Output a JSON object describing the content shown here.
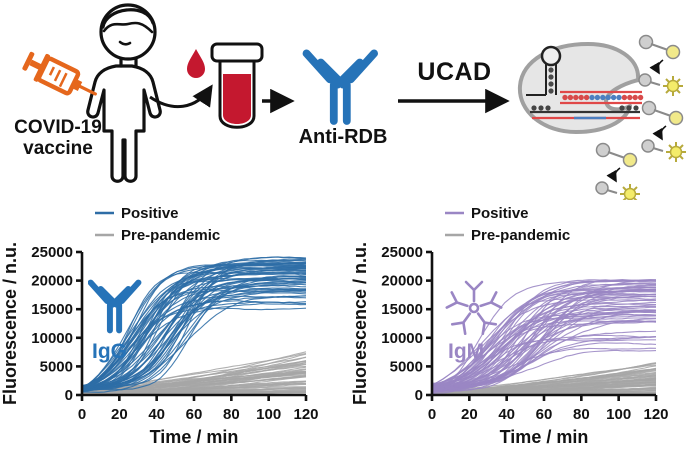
{
  "colors": {
    "positive_igg": "#2e6da6",
    "positive_igm": "#9a86c4",
    "pre_pandemic": "#a6a6a6",
    "antibody_blue": "#2673b8",
    "syringe_orange": "#e5671d",
    "blood_red": "#c4182f",
    "detector_gray": "#e6e6e6",
    "reporter_yellow": "#f1e98a",
    "text": "#111111"
  },
  "schematic": {
    "vaccine_line1": "COVID-19",
    "vaccine_line2": "vaccine",
    "antibody_label": "Anti-RDB",
    "process_label": "UCAD",
    "icons": [
      "person-icon",
      "syringe-icon",
      "blood-drop-icon",
      "blood-tube-icon",
      "transfer-arrow-icon",
      "right-arrow-icon",
      "antibody-icon",
      "ucad-arrow-icon",
      "cas-detector-icon",
      "reporter-molecule-icon"
    ]
  },
  "chart_data": [
    {
      "type": "line",
      "panel_label": "IgG",
      "xlabel": "Time / min",
      "ylabel": "Fluorescence / n.u.",
      "xlim": [
        0,
        120
      ],
      "ylim": [
        0,
        25000
      ],
      "xticks": [
        0,
        20,
        40,
        60,
        80,
        100,
        120
      ],
      "yticks": [
        0,
        5000,
        10000,
        15000,
        20000,
        25000
      ],
      "grid": false,
      "legend_position": "top-left",
      "series": [
        {
          "name": "Positive",
          "color": "#2e6da6",
          "shape": "sigmoid",
          "n_curves": 58,
          "start_fluorescence_range": [
            600,
            1800
          ],
          "plateau_range": [
            11500,
            24100
          ],
          "half_time_range_min": [
            22,
            58
          ],
          "rise_tau_range_min": [
            7,
            14
          ],
          "seed": 20
        },
        {
          "name": "Pre-pandemic",
          "color": "#a6a6a6",
          "shape": "slow-rise",
          "n_curves": 55,
          "start_fluorescence_range": [
            50,
            600
          ],
          "end_fluorescence_range": [
            300,
            7600
          ],
          "exponent_range": [
            0.9,
            1.6
          ],
          "seed": 77
        }
      ]
    },
    {
      "type": "line",
      "panel_label": "IgM",
      "xlabel": "Time / min",
      "ylabel": "Fluorescence / n.u.",
      "xlim": [
        0,
        120
      ],
      "ylim": [
        0,
        25000
      ],
      "xticks": [
        0,
        20,
        40,
        60,
        80,
        100,
        120
      ],
      "yticks": [
        0,
        5000,
        10000,
        15000,
        20000,
        25000
      ],
      "grid": false,
      "legend_position": "top-left",
      "series": [
        {
          "name": "Positive",
          "color": "#9a86c4",
          "shape": "sigmoid",
          "n_curves": 60,
          "start_fluorescence_range": [
            400,
            1900
          ],
          "plateau_range": [
            7000,
            20600
          ],
          "half_time_range_min": [
            24,
            62
          ],
          "rise_tau_range_min": [
            8,
            15
          ],
          "seed": 5
        },
        {
          "name": "Pre-pandemic",
          "color": "#a6a6a6",
          "shape": "slow-rise",
          "n_curves": 55,
          "start_fluorescence_range": [
            50,
            500
          ],
          "end_fluorescence_range": [
            200,
            5700
          ],
          "exponent_range": [
            0.9,
            1.6
          ],
          "seed": 42
        }
      ]
    }
  ]
}
